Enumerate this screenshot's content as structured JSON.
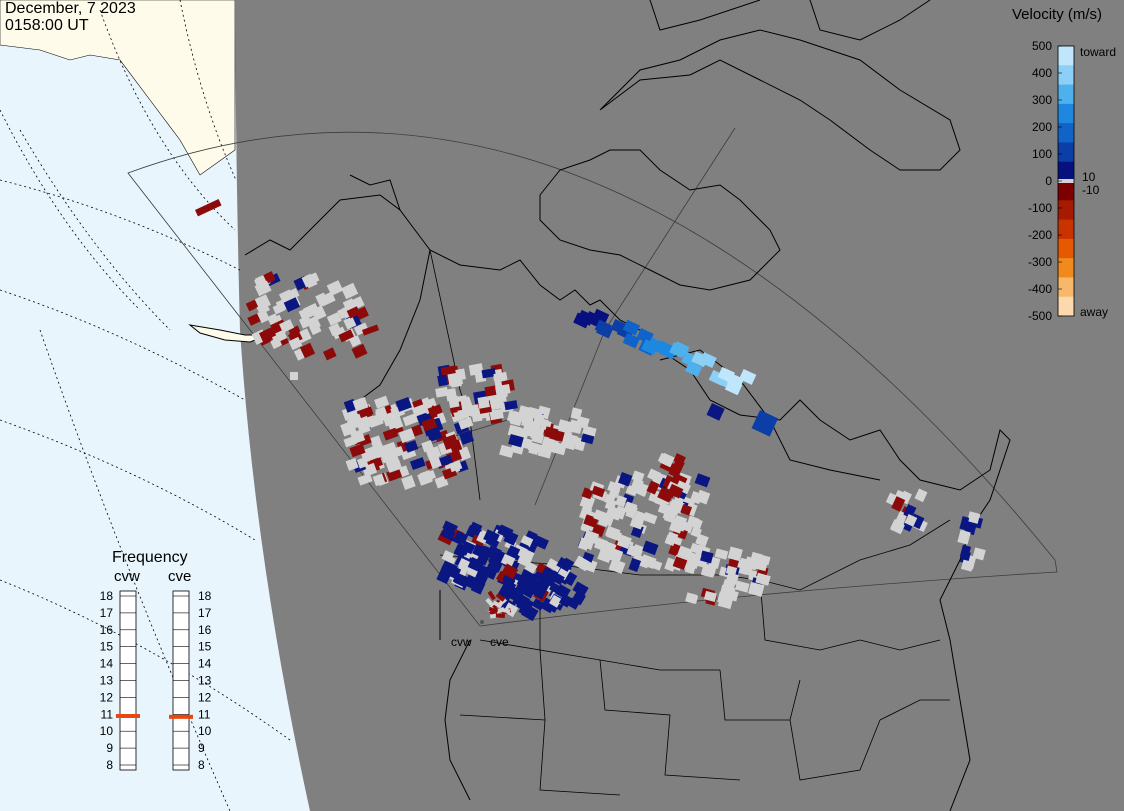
{
  "header": {
    "date": "December, 7 2023",
    "time": "0158:00 UT"
  },
  "colorbar": {
    "title": "Velocity (m/s)",
    "ticks": [
      "500",
      "400",
      "300",
      "200",
      "100",
      "0",
      "-100",
      "-200",
      "-300",
      "-400",
      "-500"
    ],
    "inner_labels": {
      "plus10": "10",
      "minus10": "-10"
    },
    "toward_label": "toward",
    "away_label": "away",
    "colors": [
      "#bfe6fa",
      "#8cd0f7",
      "#4fb0ee",
      "#1e88e0",
      "#0f63c9",
      "#0c3ea8",
      "#06107e",
      "#7d0000",
      "#a61a00",
      "#c93300",
      "#e55a00",
      "#f08a1e",
      "#f7b86a",
      "#fbd9ad"
    ]
  },
  "frequency": {
    "title": "Frequency",
    "radars": [
      "cvw",
      "cve"
    ],
    "scale": [
      "18",
      "17",
      "16",
      "15",
      "14",
      "13",
      "12",
      "11",
      "10",
      "9",
      "8"
    ],
    "cvw_value": 10.9,
    "cve_value": 10.85,
    "marker_color": "#e8480f"
  },
  "map": {
    "radar_labels": [
      "cvw",
      "cve"
    ],
    "colors": {
      "land": "#808080",
      "ocean": "#e8f5fc",
      "night_land": "#fffbea",
      "gate_gray": "#d3d3d3",
      "neg": "#8c0a0a",
      "pos": "#0a1682"
    }
  }
}
